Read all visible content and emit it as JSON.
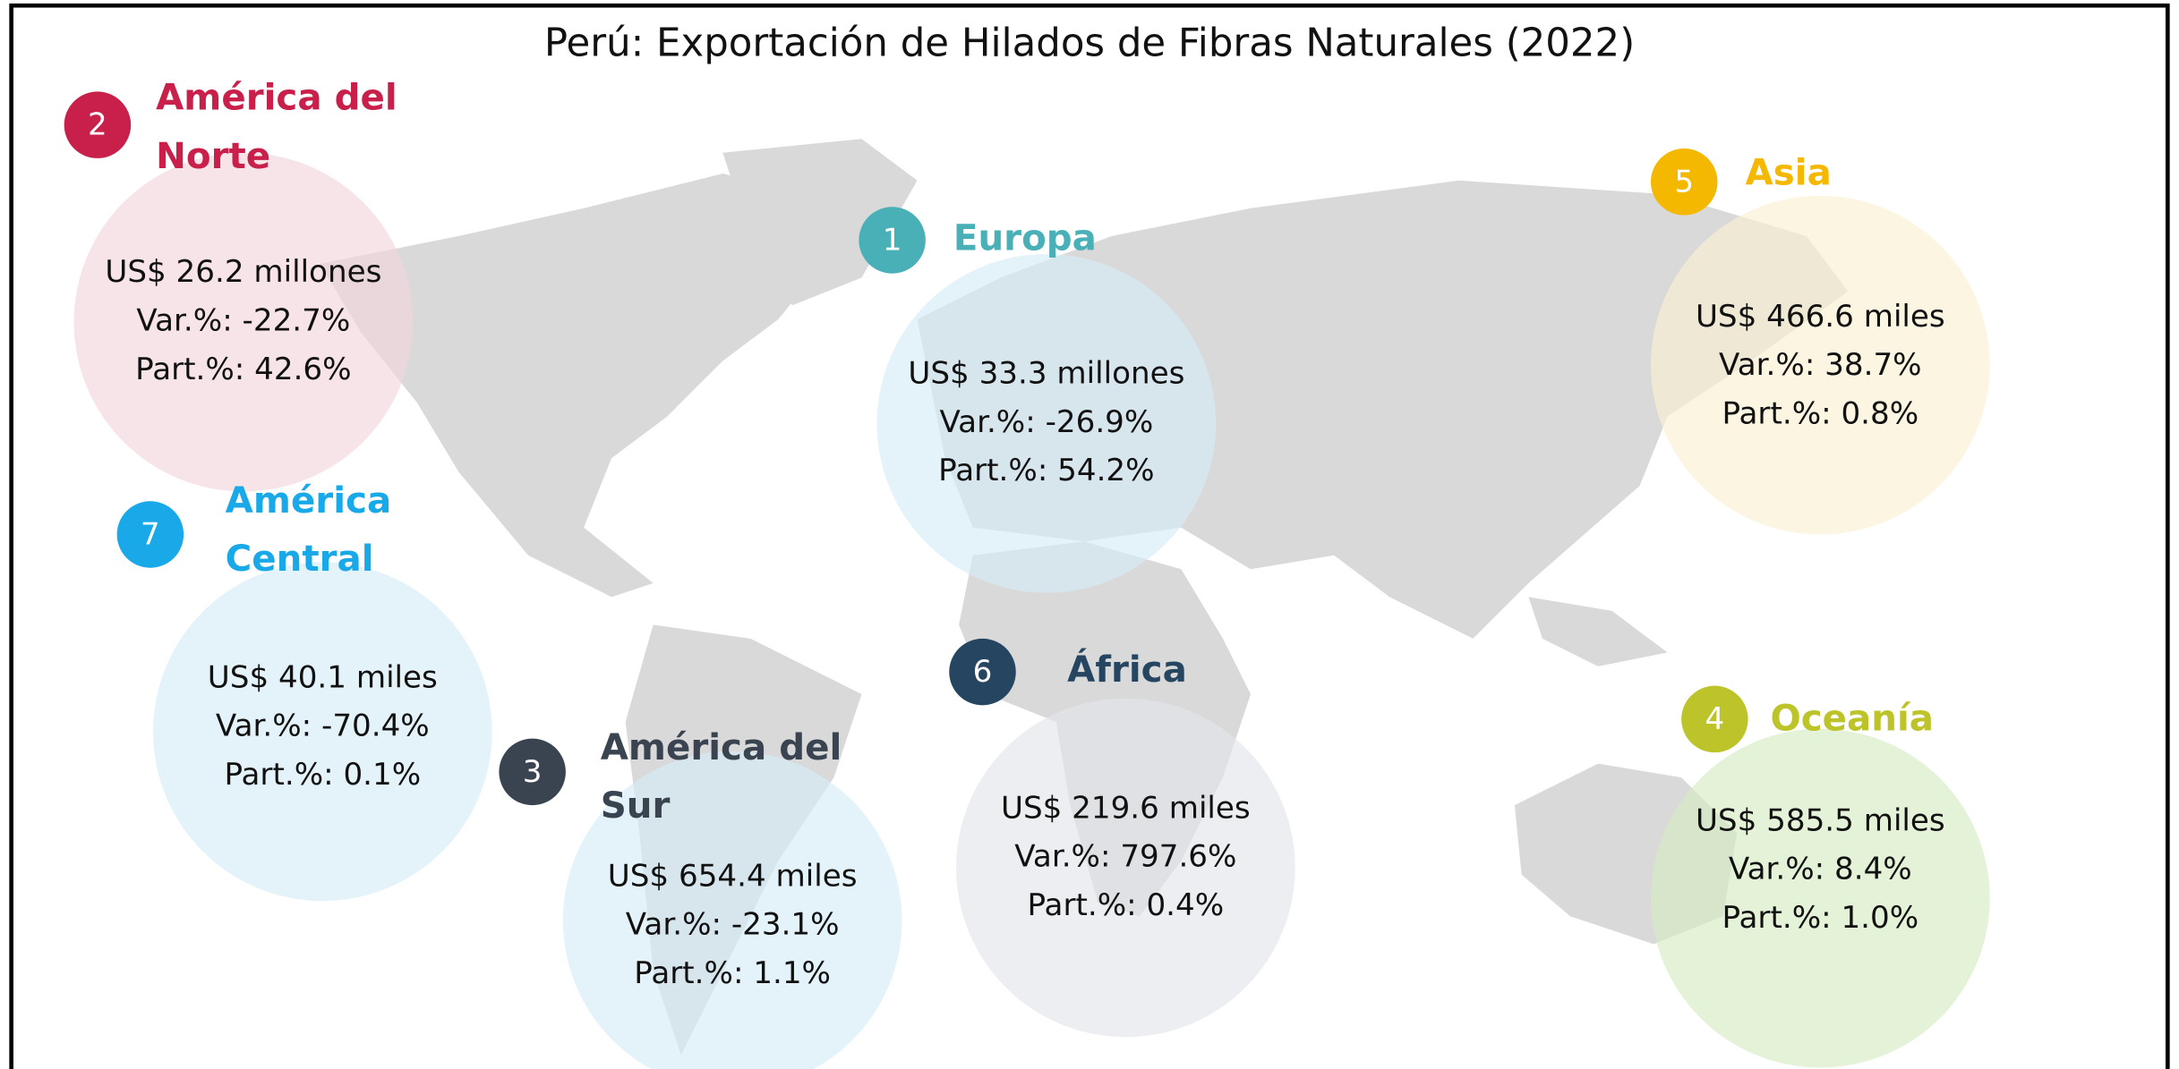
{
  "title": "Perú: Exportación de Hilados de Fibras Naturales (2022)",
  "regions": [
    {
      "rank": "1",
      "name": "Europa",
      "value": "US$ 33.3 millones",
      "var": "Var.%: -26.9%",
      "part": "Part.%: 54.2%"
    },
    {
      "rank": "2",
      "name": "América del Norte",
      "value": "US$ 26.2 millones",
      "var": "Var.%: -22.7%",
      "part": "Part.%: 42.6%"
    },
    {
      "rank": "3",
      "name": "América del Sur",
      "value": "US$ 654.4 miles",
      "var": "Var.%: -23.1%",
      "part": "Part.%: 1.1%"
    },
    {
      "rank": "4",
      "name": "Oceanía",
      "value": "US$ 585.5 miles",
      "var": "Var.%: 8.4%",
      "part": "Part.%: 1.0%"
    },
    {
      "rank": "5",
      "name": "Asia",
      "value": "US$ 466.6 miles",
      "var": "Var.%: 38.7%",
      "part": "Part.%: 0.8%"
    },
    {
      "rank": "6",
      "name": "África",
      "value": "US$ 219.6 miles",
      "var": "Var.%: 797.6%",
      "part": "Part.%: 0.4%"
    },
    {
      "rank": "7",
      "name": "América Central",
      "value": "US$ 40.1 miles",
      "var": "Var.%: -70.4%",
      "part": "Part.%: 0.1%"
    }
  ]
}
